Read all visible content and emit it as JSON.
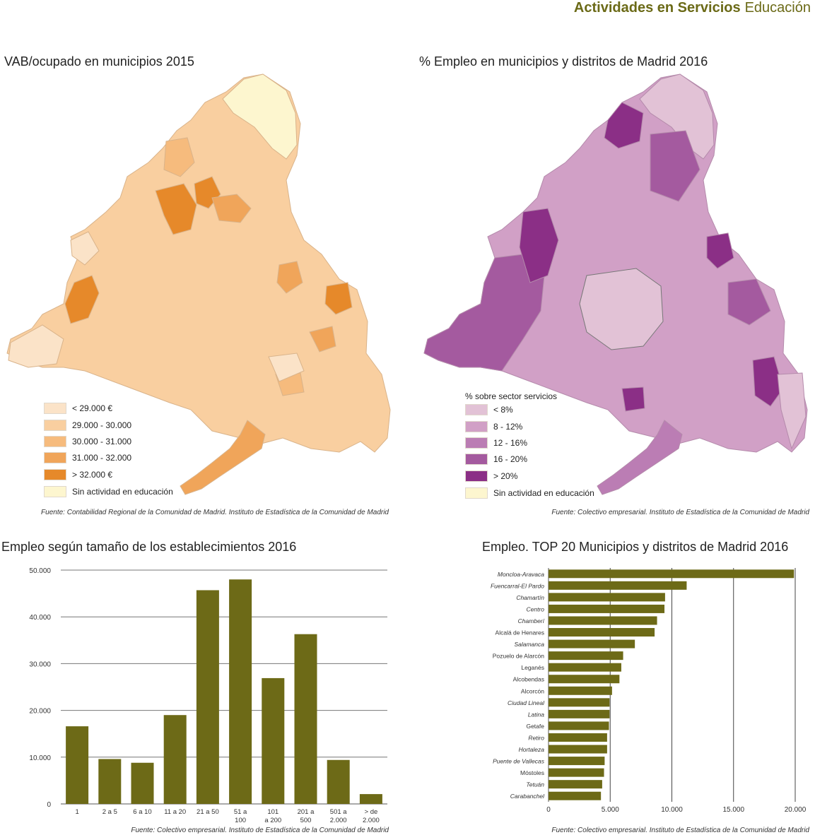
{
  "header": {
    "main": "Actividades en Servicios",
    "sub": "Educación"
  },
  "map1": {
    "title": "VAB/ocupado en municipios  2015",
    "legend": [
      {
        "label": "< 29.000 €",
        "color": "#fbe3c8"
      },
      {
        "label": "29.000 - 30.000",
        "color": "#f9cfa0"
      },
      {
        "label": "30.000 - 31.000",
        "color": "#f6bb7d"
      },
      {
        "label": "31.000 - 32.000",
        "color": "#f0a55a"
      },
      {
        "label": "> 32.000 €",
        "color": "#e6892a"
      },
      {
        "label": "Sin actividad en educación",
        "color": "#fdf6cf"
      }
    ],
    "source": "Fuente: Contabilidad Regional de la Comunidad de Madrid. Instituto de Estadística de la Comunidad de Madrid"
  },
  "map2": {
    "title": "% Empleo en municipios y distritos de Madrid  2016",
    "legend_title": "% sobre sector servicios",
    "legend": [
      {
        "label": "< 8%",
        "color": "#e2c2d6"
      },
      {
        "label": "8 - 12%",
        "color": "#d1a0c6"
      },
      {
        "label": "12 - 16%",
        "color": "#bb7db4"
      },
      {
        "label": "16 - 20%",
        "color": "#a45a9f"
      },
      {
        "label": "> 20%",
        "color": "#8b2f86"
      },
      {
        "label": "Sin actividad en educación",
        "color": "#fdf6cf"
      }
    ],
    "source": "Fuente: Colectivo empresarial. Instituto de Estadística de la Comunidad de Madrid"
  },
  "chart_data": [
    {
      "type": "bar",
      "title": "Empleo según tamaño de los establecimientos  2016",
      "categories": [
        "1",
        "2 a 5",
        "6 a 10",
        "11 a 20",
        "21 a 50",
        "51 a 100",
        "101 a 200",
        "201 a 500",
        "501 a 2.000",
        "> de 2.000"
      ],
      "category_lines": [
        [
          "1"
        ],
        [
          "2 a 5"
        ],
        [
          "6 a 10"
        ],
        [
          "11 a 20"
        ],
        [
          "21 a 50"
        ],
        [
          "51 a",
          "100"
        ],
        [
          "101",
          "a 200"
        ],
        [
          "201 a",
          "500"
        ],
        [
          "501 a",
          "2.000"
        ],
        [
          "> de",
          "2.000"
        ]
      ],
      "values": [
        16600,
        9600,
        8800,
        19000,
        45700,
        48000,
        26900,
        36300,
        9400,
        2100
      ],
      "ylim": [
        0,
        50000
      ],
      "yticks": [
        "0",
        "10.000",
        "20.000",
        "30.000",
        "40.000",
        "50.000"
      ],
      "ytick_values": [
        0,
        10000,
        20000,
        30000,
        40000,
        50000
      ],
      "grid": true,
      "color": "#6d6a17",
      "source": "Fuente: Colectivo empresarial. Instituto de Estadística de la Comunidad de Madrid"
    },
    {
      "type": "bar",
      "orientation": "horizontal",
      "title": "Empleo. TOP 20 Municipios y distritos de Madrid  2016",
      "categories": [
        "Moncloa-Aravaca",
        "Fuencarral-El Pardo",
        "Chamartín",
        "Centro",
        "Chamberí",
        "Alcalá de Henares",
        "Salamanca",
        "Pozuelo de Alarcón",
        "Leganés",
        "Alcobendas",
        "Alcorcón",
        "Ciudad Lineal",
        "Latina",
        "Getafe",
        "Retiro",
        "Hortaleza",
        "Puente de Vallecas",
        "Móstoles",
        "Tetuán",
        "Carabanchel"
      ],
      "italic": [
        true,
        true,
        true,
        true,
        true,
        false,
        true,
        false,
        false,
        false,
        false,
        true,
        true,
        false,
        true,
        true,
        true,
        false,
        true,
        true
      ],
      "values": [
        19900,
        11200,
        9450,
        9400,
        8800,
        8600,
        7000,
        6050,
        5900,
        5750,
        5150,
        4950,
        4950,
        4900,
        4750,
        4750,
        4550,
        4500,
        4350,
        4250
      ],
      "xlim": [
        0,
        20000
      ],
      "xticks": [
        "0",
        "5.000",
        "10.000",
        "15.000",
        "20.000"
      ],
      "xtick_values": [
        0,
        5000,
        10000,
        15000,
        20000
      ],
      "grid": true,
      "color": "#6d6a17",
      "source": "Fuente: Colectivo empresarial. Instituto de Estadística de la Comunidad de Madrid"
    }
  ]
}
